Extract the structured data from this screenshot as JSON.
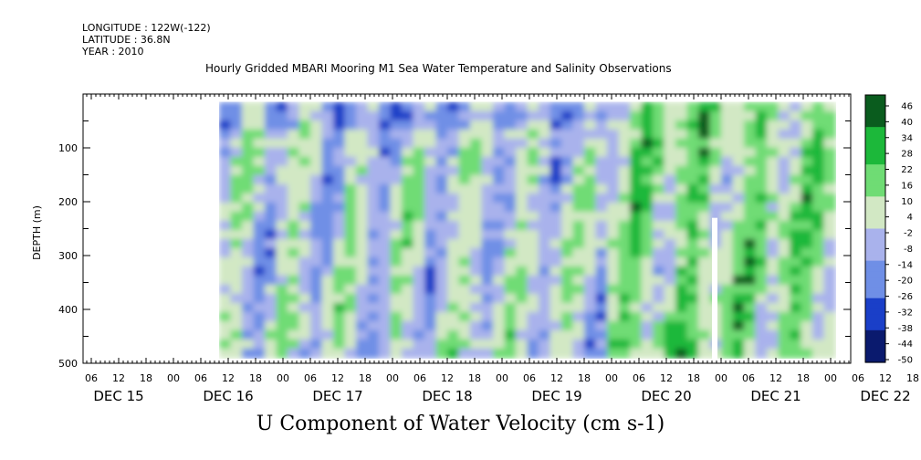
{
  "header": {
    "longitude": "LONGITUDE : 122W(-122)",
    "latitude": "LATITUDE : 36.8N",
    "year": "YEAR : 2010",
    "title": "Hourly Gridded MBARI Mooring M1 Sea Water Temperature and Salinity Observations"
  },
  "chart_data": {
    "type": "heatmap",
    "title": "U Component of Water Velocity (cm s-1)",
    "ylabel": "DEPTH (m)",
    "xlabel": "",
    "ylim": [
      500,
      0
    ],
    "y_ticks": [
      100,
      200,
      300,
      400,
      500
    ],
    "x_hour_ticks": [
      "06",
      "12",
      "18",
      "00",
      "06",
      "12",
      "18",
      "00",
      "06",
      "12",
      "18",
      "00",
      "06",
      "12",
      "18",
      "00",
      "06",
      "12",
      "18",
      "00",
      "06",
      "12",
      "18",
      "00",
      "06",
      "12",
      "18",
      "00",
      "06",
      "12",
      "18",
      "00"
    ],
    "day_labels": [
      "DEC 15",
      "DEC 16",
      "DEC 17",
      "DEC 18",
      "DEC 19",
      "DEC 20",
      "DEC 21",
      "DEC 22"
    ],
    "colorbar": {
      "min": -50,
      "max": 50,
      "tick_labels": [
        "46",
        "40",
        "34",
        "28",
        "22",
        "16",
        "10",
        "4",
        "-2",
        "-8",
        "-14",
        "-20",
        "-26",
        "-32",
        "-38",
        "-44",
        "-50"
      ],
      "colors": [
        "#0a1a6e",
        "#1a3fc8",
        "#6f8fe6",
        "#a9b2ec",
        "#d2e8c4",
        "#6fdc74",
        "#1cb83a",
        "#0a5c1e"
      ]
    },
    "data_depth_range_m": [
      15,
      485
    ],
    "data_time_range": [
      "DEC 15 10:00",
      "DEC 22 00:00"
    ],
    "gap": "DEC 19 ~23:00, 230-500 m"
  }
}
